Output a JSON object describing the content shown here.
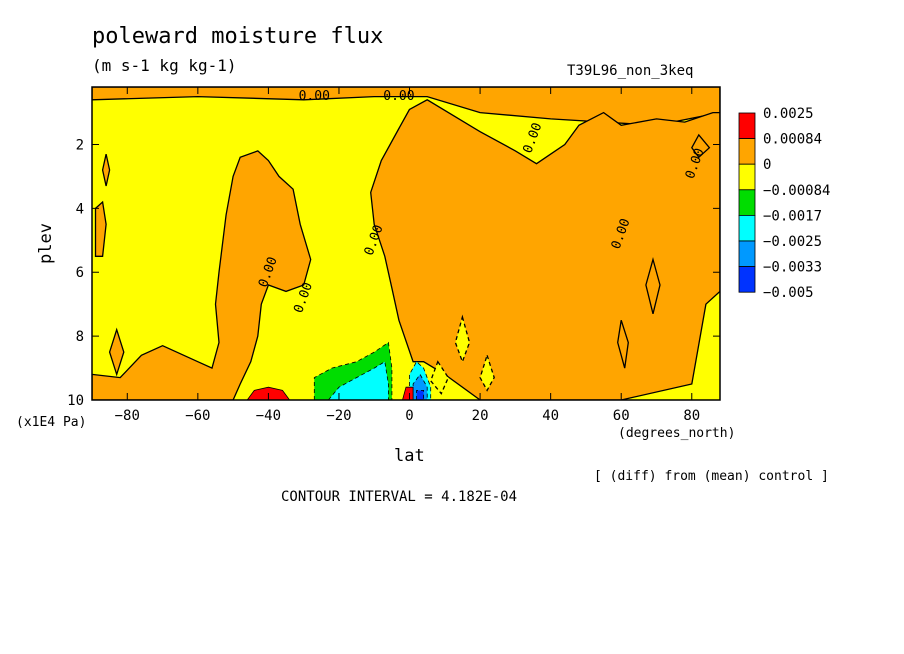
{
  "chart_data": {
    "type": "heatmap",
    "title": "poleward moisture flux",
    "units": "(m s-1 kg kg-1)",
    "run_label": "T39L96_non_3keq",
    "xlabel": "lat",
    "x_units": "(degrees_north)",
    "ylabel": "plev",
    "y_units": "(x1E4 Pa)",
    "xlim": [
      -90,
      88
    ],
    "ylim": [
      10,
      0.2
    ],
    "x_ticks": [
      -80,
      -60,
      -40,
      -20,
      0,
      20,
      40,
      60,
      80
    ],
    "y_ticks": [
      2,
      4,
      6,
      8,
      10
    ],
    "legend_levels": [
      "0.0025",
      "0.00084",
      "0",
      "−0.00084",
      "−0.0017",
      "−0.0025",
      "−0.0033",
      "−0.005"
    ],
    "legend_colors": [
      "#ff0000",
      "#ffa500",
      "#ffff00",
      "#00dd00",
      "#00ffff",
      "#0099ff",
      "#0033ff"
    ],
    "contour_labels": [
      "0.00",
      "0.00",
      "0.00",
      "0.00",
      "0.00",
      "0.00",
      "0.00",
      "0.00"
    ],
    "contour_interval": "CONTOUR INTERVAL = 4.182E-04",
    "note": "[ (diff) from (mean) control ]",
    "regions": [
      {
        "level": "positive",
        "color": "#ffa500",
        "points": [
          [
            -90,
            0.2
          ],
          [
            88,
            0.2
          ],
          [
            88,
            1.0
          ],
          [
            70,
            1.4
          ],
          [
            40,
            1.2
          ],
          [
            20,
            1.0
          ],
          [
            5,
            0.5
          ],
          [
            -10,
            0.5
          ],
          [
            -30,
            0.6
          ],
          [
            -60,
            0.5
          ],
          [
            -90,
            0.6
          ]
        ]
      },
      {
        "level": "positive",
        "color": "#ffa500",
        "points": [
          [
            0,
            0.9
          ],
          [
            5,
            0.6
          ],
          [
            20,
            1.6
          ],
          [
            30,
            2.2
          ],
          [
            36,
            2.6
          ],
          [
            40,
            2.3
          ],
          [
            44,
            2.0
          ],
          [
            48,
            1.4
          ],
          [
            55,
            1.0
          ],
          [
            60,
            1.4
          ],
          [
            70,
            1.2
          ],
          [
            78,
            1.3
          ],
          [
            86,
            1.0
          ],
          [
            88,
            1.0
          ],
          [
            88,
            6.6
          ],
          [
            84,
            7.0
          ],
          [
            80,
            9.5
          ],
          [
            60,
            10
          ],
          [
            20,
            10
          ],
          [
            10,
            9.2
          ],
          [
            4,
            8.8
          ],
          [
            1,
            8.8
          ],
          [
            -3,
            7.5
          ],
          [
            -5,
            6.5
          ],
          [
            -7,
            5.5
          ],
          [
            -10,
            4.5
          ],
          [
            -11,
            3.5
          ],
          [
            -8,
            2.5
          ],
          [
            -3,
            1.5
          ]
        ]
      },
      {
        "level": "positive",
        "color": "#ffa500",
        "points": [
          [
            -90,
            10
          ],
          [
            -90,
            9.2
          ],
          [
            -82,
            9.3
          ],
          [
            -76,
            8.6
          ],
          [
            -70,
            8.3
          ],
          [
            -60,
            8.8
          ],
          [
            -56,
            9.0
          ],
          [
            -54,
            8.2
          ],
          [
            -55,
            7.0
          ],
          [
            -54,
            6.0
          ],
          [
            -52,
            4.2
          ],
          [
            -50,
            3.0
          ],
          [
            -48,
            2.4
          ],
          [
            -43,
            2.2
          ],
          [
            -40,
            2.5
          ],
          [
            -37,
            3.0
          ],
          [
            -33,
            3.4
          ],
          [
            -31,
            4.5
          ],
          [
            -28,
            5.6
          ],
          [
            -30,
            6.4
          ],
          [
            -35,
            6.6
          ],
          [
            -40,
            6.4
          ],
          [
            -42,
            7.0
          ],
          [
            -43,
            8.0
          ],
          [
            -45,
            8.8
          ],
          [
            -48,
            9.5
          ],
          [
            -50,
            10
          ]
        ]
      },
      {
        "level": "positive",
        "color": "#ffa500",
        "points": [
          [
            -89,
            4.0
          ],
          [
            -87,
            3.8
          ],
          [
            -86,
            4.5
          ],
          [
            -87,
            5.5
          ],
          [
            -89,
            5.5
          ]
        ]
      },
      {
        "level": "positive",
        "color": "#ffa500",
        "points": [
          [
            -83,
            7.8
          ],
          [
            -81,
            8.5
          ],
          [
            -83,
            9.2
          ],
          [
            -85,
            8.5
          ]
        ]
      },
      {
        "level": "positive",
        "color": "#ffa500",
        "points": [
          [
            -86,
            2.3
          ],
          [
            -85,
            2.8
          ],
          [
            -86,
            3.3
          ],
          [
            -87,
            2.8
          ]
        ]
      },
      {
        "level": "positive",
        "color": "#ffa500",
        "points": [
          [
            60,
            7.5
          ],
          [
            62,
            8.2
          ],
          [
            61,
            9.0
          ],
          [
            59,
            8.2
          ]
        ]
      },
      {
        "level": "positive",
        "color": "#ffa500",
        "points": [
          [
            69,
            5.6
          ],
          [
            71,
            6.4
          ],
          [
            69,
            7.3
          ],
          [
            67,
            6.4
          ]
        ]
      },
      {
        "level": "positive",
        "color": "#ffa500",
        "points": [
          [
            82,
            1.7
          ],
          [
            85,
            2.1
          ],
          [
            82,
            2.4
          ],
          [
            80,
            2.1
          ]
        ]
      },
      {
        "level": "negative",
        "color": "#ffff00",
        "points": [
          [
            15,
            7.4
          ],
          [
            17,
            8.2
          ],
          [
            15,
            8.8
          ],
          [
            13,
            8.2
          ]
        ]
      },
      {
        "level": "negative",
        "color": "#ffff00",
        "points": [
          [
            22,
            8.6
          ],
          [
            24,
            9.3
          ],
          [
            22,
            9.7
          ],
          [
            20,
            9.3
          ]
        ]
      },
      {
        "level": "negative",
        "color": "#ffff00",
        "points": [
          [
            8,
            8.8
          ],
          [
            11,
            9.3
          ],
          [
            9,
            9.8
          ],
          [
            6,
            9.4
          ]
        ]
      },
      {
        "level": "strong_negative",
        "color": "#00dd00",
        "points": [
          [
            -27,
            10
          ],
          [
            -27,
            9.3
          ],
          [
            -22,
            9.0
          ],
          [
            -15,
            8.8
          ],
          [
            -10,
            8.5
          ],
          [
            -6,
            8.2
          ],
          [
            -5,
            9.0
          ],
          [
            -5,
            10
          ]
        ]
      },
      {
        "level": "strong_negative",
        "color": "#00ffff",
        "points": [
          [
            -23,
            10
          ],
          [
            -20,
            9.6
          ],
          [
            -15,
            9.3
          ],
          [
            -10,
            9.0
          ],
          [
            -7,
            8.8
          ],
          [
            -6,
            9.5
          ],
          [
            -6,
            10
          ]
        ]
      },
      {
        "level": "strong_negative",
        "color": "#00ffff",
        "points": [
          [
            0,
            10
          ],
          [
            0,
            9.2
          ],
          [
            2,
            8.8
          ],
          [
            4,
            9.0
          ],
          [
            6,
            9.6
          ],
          [
            6,
            10
          ]
        ]
      },
      {
        "level": "strong_negative",
        "color": "#0099ff",
        "points": [
          [
            1,
            10
          ],
          [
            1,
            9.5
          ],
          [
            3,
            9.2
          ],
          [
            5,
            9.6
          ],
          [
            5,
            10
          ]
        ]
      },
      {
        "level": "strong_negative",
        "color": "#0033ff",
        "points": [
          [
            2,
            10
          ],
          [
            2,
            9.7
          ],
          [
            4,
            9.7
          ],
          [
            4,
            10
          ]
        ]
      },
      {
        "level": "strong_positive",
        "color": "#ff0000",
        "points": [
          [
            -46,
            10
          ],
          [
            -44,
            9.7
          ],
          [
            -40,
            9.6
          ],
          [
            -36,
            9.7
          ],
          [
            -34,
            10
          ]
        ]
      },
      {
        "level": "strong_positive",
        "color": "#ff0000",
        "points": [
          [
            -2,
            10
          ],
          [
            -1,
            9.6
          ],
          [
            1,
            9.6
          ],
          [
            1,
            10
          ]
        ]
      }
    ],
    "contour_label_positions": [
      [
        -27,
        0.5
      ],
      [
        -3,
        0.5
      ],
      [
        -40,
        6.0
      ],
      [
        -30,
        6.8
      ],
      [
        -10,
        5.0
      ],
      [
        35,
        1.8
      ],
      [
        60,
        4.8
      ],
      [
        81,
        2.6
      ]
    ]
  }
}
